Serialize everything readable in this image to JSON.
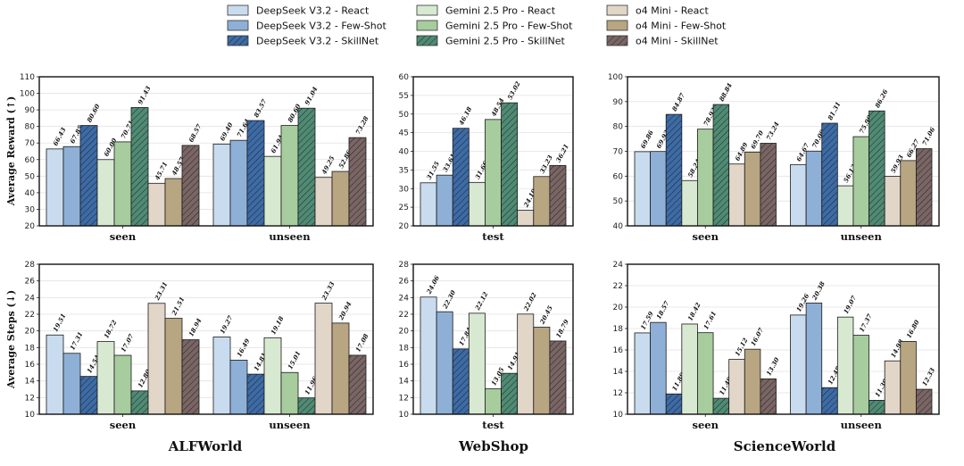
{
  "chart_data": {
    "type": "bar",
    "legend": {
      "placement": "top-center",
      "entries": [
        {
          "label": "DeepSeek V3.2 - React",
          "color": "#c9dcef",
          "hatch": false
        },
        {
          "label": "DeepSeek V3.2 - Few-Shot",
          "color": "#8eb0d6",
          "hatch": false
        },
        {
          "label": "DeepSeek V3.2 - SkillNet",
          "color": "#3d6ba6",
          "hatch": true
        },
        {
          "label": "Gemini 2.5 Pro - React",
          "color": "#d8e9d1",
          "hatch": false
        },
        {
          "label": "Gemini 2.5 Pro - Few-Shot",
          "color": "#a7cc9e",
          "hatch": false
        },
        {
          "label": "Gemini 2.5 Pro - SkillNet",
          "color": "#4f8b74",
          "hatch": true
        },
        {
          "label": "o4 Mini - React",
          "color": "#e2d6c8",
          "hatch": false
        },
        {
          "label": "o4 Mini - Few-Shot",
          "color": "#b8a582",
          "hatch": false
        },
        {
          "label": "o4 Mini - SkillNet",
          "color": "#7a6565",
          "hatch": true
        }
      ]
    },
    "domains": [
      "ALFWorld",
      "WebShop",
      "ScienceWorld"
    ],
    "row_ylabels": [
      "Average Reward (↑)",
      "Average Steps (↓)"
    ],
    "panels": [
      {
        "domain": "ALFWorld",
        "metric": "Average Reward (↑)",
        "ylim": [
          20,
          110
        ],
        "yticks": [
          20,
          30,
          40,
          50,
          60,
          70,
          80,
          90,
          100,
          110
        ],
        "grid": true,
        "groups": [
          {
            "name": "seen",
            "values": [
              66.43,
              67.85,
              80.6,
              60.0,
              70.71,
              91.43,
              45.71,
              48.57,
              68.57
            ]
          },
          {
            "name": "unseen",
            "values": [
              69.4,
              71.64,
              83.57,
              61.94,
              80.6,
              91.04,
              49.25,
              52.86,
              73.28
            ]
          }
        ]
      },
      {
        "domain": "WebShop",
        "metric": "Average Reward (↑)",
        "ylim": [
          20,
          60
        ],
        "yticks": [
          20,
          25,
          30,
          35,
          40,
          45,
          50,
          55,
          60
        ],
        "grid": true,
        "groups": [
          {
            "name": "test",
            "values": [
              31.55,
              33.61,
              46.18,
              31.66,
              48.54,
              53.02,
              24.19,
              33.23,
              36.21
            ]
          }
        ]
      },
      {
        "domain": "ScienceWorld",
        "metric": "Average Reward (↑)",
        "ylim": [
          40,
          100
        ],
        "yticks": [
          40,
          50,
          60,
          70,
          80,
          90,
          100
        ],
        "grid": true,
        "groups": [
          {
            "name": "seen",
            "values": [
              69.86,
              69.93,
              84.87,
              58.24,
              78.93,
              88.84,
              64.89,
              69.7,
              73.24
            ]
          },
          {
            "name": "unseen",
            "values": [
              64.67,
              70.09,
              81.31,
              56.13,
              75.9,
              86.26,
              59.93,
              66.27,
              71.06
            ]
          }
        ]
      },
      {
        "domain": "ALFWorld",
        "metric": "Average Steps (↓)",
        "ylim": [
          10,
          28
        ],
        "yticks": [
          10,
          12,
          14,
          16,
          18,
          20,
          22,
          24,
          26,
          28
        ],
        "grid": true,
        "groups": [
          {
            "name": "seen",
            "values": [
              19.51,
              17.31,
              14.54,
              18.72,
              17.07,
              12.8,
              23.31,
              21.51,
              18.94
            ]
          },
          {
            "name": "unseen",
            "values": [
              19.27,
              16.49,
              14.81,
              19.18,
              15.01,
              11.96,
              23.33,
              20.94,
              17.08
            ]
          }
        ]
      },
      {
        "domain": "WebShop",
        "metric": "Average Steps (↓)",
        "ylim": [
          10,
          28
        ],
        "yticks": [
          10,
          12,
          14,
          16,
          18,
          20,
          22,
          24,
          26,
          28
        ],
        "grid": true,
        "groups": [
          {
            "name": "test",
            "values": [
              24.06,
              22.3,
              17.84,
              22.12,
              13.05,
              14.91,
              22.02,
              20.45,
              18.79
            ]
          }
        ]
      },
      {
        "domain": "ScienceWorld",
        "metric": "Average Steps (↓)",
        "ylim": [
          10,
          24
        ],
        "yticks": [
          10,
          12,
          14,
          16,
          18,
          20,
          22,
          24
        ],
        "grid": true,
        "groups": [
          {
            "name": "seen",
            "values": [
              17.59,
              18.57,
              11.89,
              18.42,
              17.61,
              11.49,
              15.12,
              16.07,
              13.3
            ]
          },
          {
            "name": "unseen",
            "values": [
              19.26,
              20.38,
              12.48,
              19.07,
              17.37,
              11.3,
              14.98,
              16.8,
              12.33
            ]
          }
        ]
      }
    ]
  }
}
